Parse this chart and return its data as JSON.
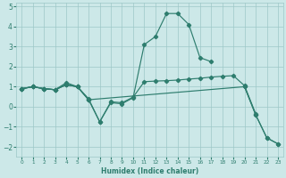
{
  "x_values": [
    0,
    1,
    2,
    3,
    4,
    5,
    6,
    7,
    8,
    9,
    10,
    11,
    12,
    13,
    14,
    15,
    16,
    17,
    18,
    19,
    20,
    21,
    22,
    23
  ],
  "series": {
    "line_peak": [
      0.9,
      1.0,
      0.9,
      0.85,
      1.2,
      1.0,
      0.4,
      -0.75,
      0.2,
      0.15,
      0.45,
      3.1,
      3.5,
      4.65,
      4.65,
      4.1,
      2.45,
      2.25,
      null,
      null,
      null,
      null,
      null,
      null
    ],
    "line_flat": [
      0.9,
      1.0,
      0.9,
      0.85,
      1.1,
      1.0,
      0.35,
      -0.75,
      0.25,
      0.2,
      0.48,
      1.25,
      1.28,
      1.3,
      1.33,
      1.38,
      1.42,
      1.48,
      1.52,
      1.55,
      1.05,
      -0.35,
      null,
      null
    ],
    "line_diag": [
      0.9,
      1.0,
      0.9,
      0.85,
      1.1,
      1.0,
      0.35,
      null,
      null,
      null,
      null,
      null,
      null,
      null,
      null,
      null,
      null,
      null,
      null,
      null,
      1.0,
      -0.4,
      -1.55,
      -1.85
    ]
  },
  "line_color": "#2e7d6e",
  "marker": "D",
  "markersize": 2.2,
  "bg_color": "#cce8e8",
  "grid_color": "#9ec8c8",
  "xlabel": "Humidex (Indice chaleur)",
  "ylim": [
    -2.5,
    5.2
  ],
  "xlim": [
    -0.5,
    23.5
  ],
  "yticks": [
    -2,
    -1,
    0,
    1,
    2,
    3,
    4,
    5
  ],
  "xticks": [
    0,
    1,
    2,
    3,
    4,
    5,
    6,
    7,
    8,
    9,
    10,
    11,
    12,
    13,
    14,
    15,
    16,
    17,
    18,
    19,
    20,
    21,
    22,
    23
  ]
}
